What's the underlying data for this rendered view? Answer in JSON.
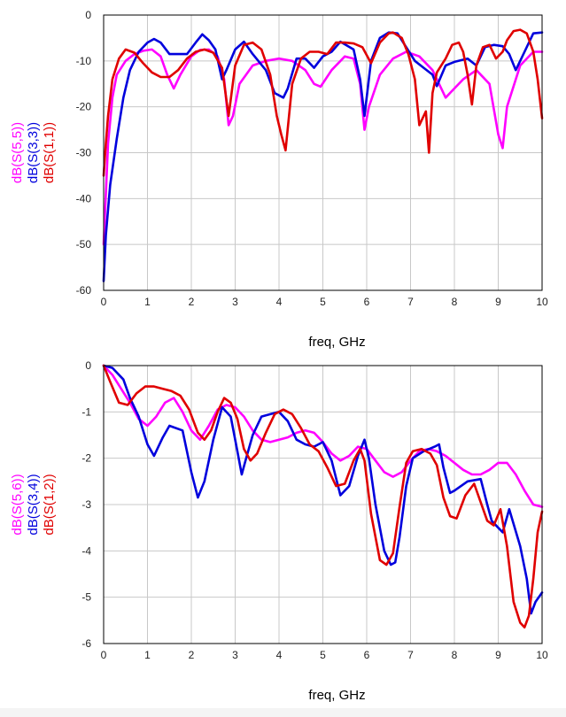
{
  "chart_data": [
    {
      "type": "line",
      "xlabel": "freq, GHz",
      "ylabel": "",
      "xlim": [
        0,
        10
      ],
      "ylim": [
        -60,
        0
      ],
      "xticks": [
        "0",
        "1",
        "2",
        "3",
        "4",
        "5",
        "6",
        "7",
        "8",
        "9",
        "10"
      ],
      "yticks": [
        "0",
        "-10",
        "-20",
        "-30",
        "-40",
        "-50",
        "-60"
      ],
      "grid": true,
      "legend_position": "left, rotated vertical",
      "series": [
        {
          "name": "dB(S(5,5))",
          "color": "#ff00ff",
          "x": [
            0,
            0.1,
            0.2,
            0.3,
            0.5,
            0.7,
            0.9,
            1.1,
            1.3,
            1.45,
            1.6,
            1.75,
            2.0,
            2.2,
            2.4,
            2.6,
            2.75,
            2.85,
            2.95,
            3.1,
            3.4,
            3.7,
            4.0,
            4.3,
            4.6,
            4.8,
            4.95,
            5.2,
            5.5,
            5.7,
            5.85,
            5.95,
            6.05,
            6.3,
            6.6,
            6.9,
            7.2,
            7.5,
            7.8,
            8.2,
            8.5,
            8.8,
            9.0,
            9.1,
            9.2,
            9.5,
            9.8,
            10.0
          ],
          "values": [
            -50,
            -28,
            -18,
            -13,
            -10,
            -8.5,
            -7.8,
            -7.5,
            -9,
            -13,
            -16,
            -13,
            -9,
            -7.6,
            -7.5,
            -9,
            -14,
            -24,
            -22,
            -15,
            -11,
            -10,
            -9.5,
            -10,
            -12,
            -15,
            -15.6,
            -12,
            -9,
            -9.5,
            -15,
            -25,
            -20,
            -13,
            -9.5,
            -8,
            -9,
            -12,
            -18,
            -14,
            -12,
            -15,
            -26,
            -29,
            -20,
            -11,
            -8,
            -8
          ]
        },
        {
          "name": "dB(S(3,3))",
          "color": "#0000dd",
          "x": [
            0,
            0.05,
            0.15,
            0.3,
            0.45,
            0.6,
            0.8,
            1.0,
            1.15,
            1.3,
            1.5,
            1.7,
            1.9,
            2.1,
            2.25,
            2.4,
            2.55,
            2.7,
            2.8,
            3.0,
            3.2,
            3.4,
            3.7,
            3.9,
            4.1,
            4.2,
            4.4,
            4.6,
            4.8,
            5.0,
            5.2,
            5.4,
            5.7,
            5.85,
            5.95,
            6.1,
            6.3,
            6.5,
            6.7,
            6.9,
            7.1,
            7.3,
            7.5,
            7.6,
            7.8,
            8.0,
            8.3,
            8.5,
            8.7,
            8.9,
            9.1,
            9.25,
            9.4,
            9.6,
            9.8,
            10.0
          ],
          "values": [
            -58,
            -48,
            -37,
            -27,
            -18,
            -12,
            -8,
            -6,
            -5.2,
            -6,
            -8.5,
            -8.5,
            -8.5,
            -6,
            -4.2,
            -5.5,
            -7.5,
            -14,
            -12,
            -7.5,
            -5.8,
            -8.5,
            -12,
            -17,
            -18,
            -16,
            -9.5,
            -9.5,
            -11.5,
            -9,
            -8,
            -5.8,
            -7.5,
            -14,
            -22,
            -10,
            -5,
            -3.8,
            -4,
            -7,
            -10,
            -11.5,
            -13,
            -15.5,
            -11,
            -10.2,
            -9.5,
            -11,
            -7,
            -6.5,
            -6.8,
            -8.5,
            -12,
            -8,
            -4,
            -3.8
          ]
        },
        {
          "name": "dB(S(1,1))",
          "color": "#e00000",
          "x": [
            0,
            0.05,
            0.1,
            0.2,
            0.35,
            0.5,
            0.7,
            0.9,
            1.1,
            1.3,
            1.5,
            1.7,
            1.9,
            2.1,
            2.3,
            2.5,
            2.7,
            2.85,
            3.0,
            3.2,
            3.4,
            3.6,
            3.8,
            3.95,
            4.05,
            4.15,
            4.3,
            4.5,
            4.7,
            4.9,
            5.1,
            5.3,
            5.5,
            5.7,
            5.9,
            6.1,
            6.3,
            6.5,
            6.6,
            6.8,
            6.95,
            7.1,
            7.2,
            7.35,
            7.42,
            7.5,
            7.6,
            7.8,
            7.95,
            8.1,
            8.2,
            8.3,
            8.4,
            8.5,
            8.65,
            8.8,
            8.95,
            9.1,
            9.2,
            9.35,
            9.5,
            9.65,
            9.8,
            9.9,
            10.0
          ],
          "values": [
            -35,
            -28,
            -22,
            -14,
            -9.5,
            -7.5,
            -8.2,
            -10.5,
            -12.5,
            -13.5,
            -13.5,
            -12,
            -9.5,
            -8,
            -7.5,
            -8.2,
            -11.5,
            -22,
            -11,
            -6.5,
            -6,
            -7.5,
            -13,
            -22,
            -26,
            -29.5,
            -15,
            -9.5,
            -8,
            -8,
            -8.5,
            -6,
            -6,
            -6.2,
            -7,
            -10.5,
            -6,
            -4,
            -3.8,
            -5,
            -8.5,
            -14,
            -24,
            -21,
            -30,
            -17,
            -12.5,
            -9.5,
            -6.5,
            -6,
            -8,
            -13,
            -19.5,
            -11,
            -7,
            -6.5,
            -9.5,
            -8,
            -5.5,
            -3.5,
            -3.2,
            -4,
            -8,
            -14,
            -22.5
          ]
        }
      ]
    },
    {
      "type": "line",
      "xlabel": "freq, GHz",
      "ylabel": "",
      "xlim": [
        0,
        10
      ],
      "ylim": [
        -6,
        0
      ],
      "xticks": [
        "0",
        "1",
        "2",
        "3",
        "4",
        "5",
        "6",
        "7",
        "8",
        "9",
        "10"
      ],
      "yticks": [
        "0",
        "-1",
        "-2",
        "-3",
        "-4",
        "-5",
        "-6"
      ],
      "grid": true,
      "legend_position": "left, rotated vertical",
      "series": [
        {
          "name": "dB(S(5,6))",
          "color": "#ff00ff",
          "x": [
            0,
            0.2,
            0.4,
            0.6,
            0.8,
            1.0,
            1.2,
            1.4,
            1.6,
            1.8,
            2.0,
            2.2,
            2.4,
            2.6,
            2.8,
            3.0,
            3.2,
            3.4,
            3.6,
            3.8,
            4.0,
            4.2,
            4.4,
            4.6,
            4.8,
            5.0,
            5.2,
            5.4,
            5.6,
            5.8,
            6.0,
            6.2,
            6.4,
            6.6,
            6.8,
            7.0,
            7.2,
            7.4,
            7.6,
            7.8,
            8.0,
            8.2,
            8.4,
            8.6,
            8.8,
            9.0,
            9.2,
            9.4,
            9.6,
            9.8,
            10.0
          ],
          "values": [
            0,
            -0.2,
            -0.5,
            -0.8,
            -1.15,
            -1.3,
            -1.1,
            -0.8,
            -0.7,
            -1.0,
            -1.4,
            -1.6,
            -1.3,
            -0.95,
            -0.85,
            -0.9,
            -1.1,
            -1.4,
            -1.6,
            -1.65,
            -1.6,
            -1.55,
            -1.45,
            -1.4,
            -1.45,
            -1.65,
            -1.9,
            -2.05,
            -1.95,
            -1.75,
            -1.8,
            -2.05,
            -2.3,
            -2.4,
            -2.3,
            -2.05,
            -1.85,
            -1.8,
            -1.85,
            -1.95,
            -2.1,
            -2.25,
            -2.35,
            -2.35,
            -2.25,
            -2.1,
            -2.1,
            -2.35,
            -2.7,
            -3.0,
            -3.05
          ]
        },
        {
          "name": "dB(S(3,4))",
          "color": "#0000dd",
          "x": [
            0,
            0.2,
            0.45,
            0.6,
            0.8,
            1.0,
            1.15,
            1.35,
            1.5,
            1.8,
            2.0,
            2.15,
            2.3,
            2.5,
            2.7,
            2.9,
            3.05,
            3.15,
            3.25,
            3.4,
            3.6,
            3.8,
            4.0,
            4.2,
            4.4,
            4.6,
            4.8,
            5.0,
            5.2,
            5.4,
            5.6,
            5.8,
            5.95,
            6.05,
            6.2,
            6.4,
            6.55,
            6.65,
            6.75,
            6.9,
            7.05,
            7.3,
            7.55,
            7.65,
            7.75,
            7.9,
            8.0,
            8.3,
            8.6,
            8.75,
            8.85,
            9.0,
            9.1,
            9.25,
            9.5,
            9.65,
            9.75,
            9.85,
            10.0
          ],
          "values": [
            0,
            -0.05,
            -0.3,
            -0.7,
            -1.1,
            -1.7,
            -1.95,
            -1.55,
            -1.3,
            -1.4,
            -2.3,
            -2.85,
            -2.5,
            -1.6,
            -0.9,
            -1.1,
            -1.85,
            -2.35,
            -2.0,
            -1.5,
            -1.1,
            -1.05,
            -1.0,
            -1.2,
            -1.6,
            -1.7,
            -1.75,
            -1.65,
            -2.05,
            -2.8,
            -2.6,
            -1.95,
            -1.6,
            -2.0,
            -3.0,
            -4.0,
            -4.3,
            -4.25,
            -3.7,
            -2.6,
            -2.0,
            -1.85,
            -1.75,
            -1.7,
            -2.2,
            -2.75,
            -2.7,
            -2.5,
            -2.45,
            -3.0,
            -3.35,
            -3.5,
            -3.6,
            -3.1,
            -3.9,
            -4.6,
            -5.35,
            -5.1,
            -4.9
          ]
        },
        {
          "name": "dB(S(1,2))",
          "color": "#e00000",
          "x": [
            0,
            0.15,
            0.35,
            0.55,
            0.75,
            0.95,
            1.15,
            1.35,
            1.55,
            1.75,
            1.95,
            2.15,
            2.3,
            2.45,
            2.6,
            2.75,
            2.9,
            3.05,
            3.2,
            3.35,
            3.5,
            3.7,
            3.9,
            4.1,
            4.3,
            4.5,
            4.7,
            4.9,
            5.1,
            5.3,
            5.5,
            5.7,
            5.85,
            5.95,
            6.1,
            6.3,
            6.45,
            6.6,
            6.75,
            6.9,
            7.05,
            7.25,
            7.45,
            7.6,
            7.75,
            7.9,
            8.05,
            8.25,
            8.45,
            8.6,
            8.75,
            8.9,
            9.05,
            9.2,
            9.35,
            9.5,
            9.6,
            9.7,
            9.8,
            9.9,
            10.0
          ],
          "values": [
            0,
            -0.35,
            -0.8,
            -0.85,
            -0.6,
            -0.45,
            -0.45,
            -0.5,
            -0.55,
            -0.65,
            -0.95,
            -1.45,
            -1.6,
            -1.4,
            -1.0,
            -0.7,
            -0.8,
            -1.15,
            -1.8,
            -2.05,
            -1.9,
            -1.45,
            -1.05,
            -0.95,
            -1.05,
            -1.35,
            -1.7,
            -1.85,
            -2.2,
            -2.6,
            -2.55,
            -2.05,
            -1.8,
            -2.05,
            -3.2,
            -4.2,
            -4.3,
            -4.05,
            -3.05,
            -2.1,
            -1.85,
            -1.8,
            -1.9,
            -2.15,
            -2.85,
            -3.25,
            -3.3,
            -2.8,
            -2.55,
            -2.95,
            -3.35,
            -3.45,
            -3.1,
            -3.9,
            -5.1,
            -5.55,
            -5.65,
            -5.4,
            -4.6,
            -3.6,
            -3.15
          ]
        }
      ]
    }
  ]
}
